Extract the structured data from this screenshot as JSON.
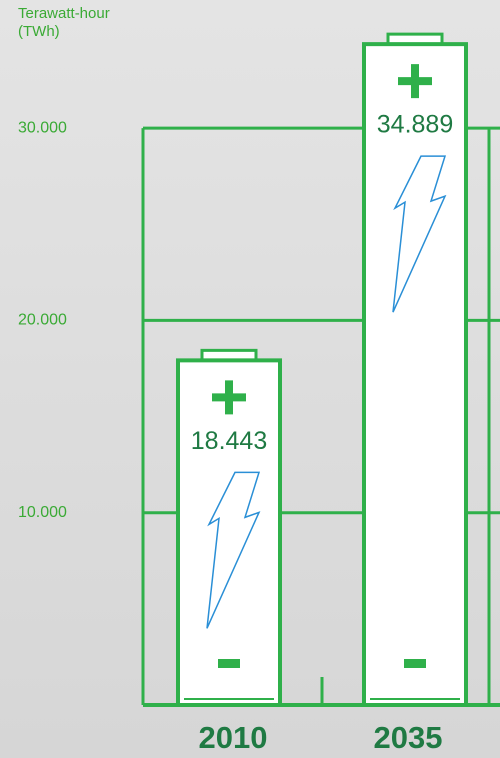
{
  "chart_data": {
    "type": "bar",
    "y_label": [
      "Terawatt-hour",
      "(TWh)"
    ],
    "categories": [
      "2010",
      "2035"
    ],
    "values": [
      18443,
      34889
    ],
    "value_labels": [
      "18.443",
      "34.889"
    ],
    "color": "#2fb04a",
    "ylim": [
      0,
      35000
    ],
    "yticks": [
      {
        "value": 10000,
        "label": "10.000"
      },
      {
        "value": 20000,
        "label": "20.000"
      },
      {
        "value": 30000,
        "label": "30.000"
      }
    ],
    "grid": true
  }
}
